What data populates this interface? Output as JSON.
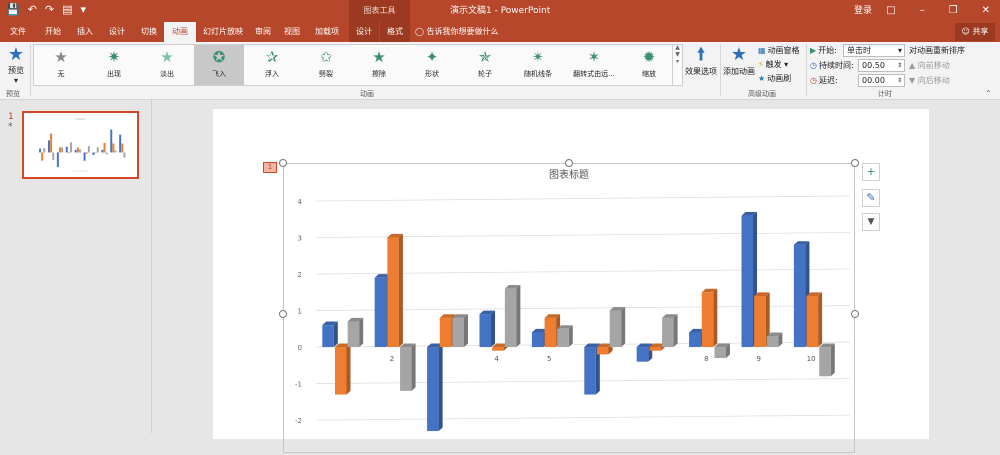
{
  "titlebar": {
    "context_tools": "图表工具",
    "title": "演示文稿1  -  PowerPoint",
    "login": "登录",
    "qat": [
      "save-icon",
      "undo-icon",
      "redo-icon",
      "present-icon",
      "customize-icon"
    ],
    "window_controls": [
      "ribbon-display-icon",
      "minimize-icon",
      "restore-icon",
      "close-icon"
    ]
  },
  "tabs": {
    "items": [
      {
        "label": "文件",
        "name": "tab-file"
      },
      {
        "label": "开始",
        "name": "tab-home"
      },
      {
        "label": "插入",
        "name": "tab-insert"
      },
      {
        "label": "设计",
        "name": "tab-design"
      },
      {
        "label": "切换",
        "name": "tab-transitions"
      },
      {
        "label": "动画",
        "name": "tab-animations"
      },
      {
        "label": "幻灯片放映",
        "name": "tab-slideshow"
      },
      {
        "label": "审阅",
        "name": "tab-review"
      },
      {
        "label": "视图",
        "name": "tab-view"
      },
      {
        "label": "加载项",
        "name": "tab-addins"
      },
      {
        "label": "设计",
        "name": "tab-chart-design"
      },
      {
        "label": "格式",
        "name": "tab-chart-format"
      }
    ],
    "tell_me": "告诉我你想要做什么",
    "share": "共享"
  },
  "ribbon": {
    "preview_label": "预览",
    "preview_group": "预览",
    "animation_group": "动画",
    "effects": [
      {
        "label": "无",
        "icon": "star-none-icon"
      },
      {
        "label": "出现",
        "icon": "star-appear-icon"
      },
      {
        "label": "淡出",
        "icon": "star-fade-icon"
      },
      {
        "label": "飞入",
        "icon": "star-fly-in-icon"
      },
      {
        "label": "浮入",
        "icon": "star-float-in-icon"
      },
      {
        "label": "劈裂",
        "icon": "star-split-icon"
      },
      {
        "label": "擦除",
        "icon": "star-wipe-icon"
      },
      {
        "label": "形状",
        "icon": "star-shape-icon"
      },
      {
        "label": "轮子",
        "icon": "star-wheel-icon"
      },
      {
        "label": "随机线条",
        "icon": "star-random-bars-icon"
      },
      {
        "label": "翻转式由远...",
        "icon": "star-grow-turn-icon"
      },
      {
        "label": "缩放",
        "icon": "star-zoom-icon"
      }
    ],
    "selected_effect": 3,
    "effect_options": "效果选项",
    "add_animation": "添加动画",
    "animation_pane": "动画窗格",
    "trigger": "触发",
    "animation_painter": "动画刷",
    "advanced_group": "高级动画",
    "start_label": "开始:",
    "start_value": "单击时",
    "duration_label": "持续时间:",
    "duration_value": "00.50",
    "delay_label": "延迟:",
    "delay_value": "00.00",
    "reorder_label": "对动画重新排序",
    "move_earlier": "向前移动",
    "move_later": "向后移动",
    "timing_group": "计时"
  },
  "thumbnails": {
    "number": "1",
    "star": "*"
  },
  "slide": {
    "anim_tag": "1",
    "chart_side_buttons": [
      "plus-icon",
      "brush-icon",
      "filter-icon"
    ]
  },
  "chart_data": {
    "type": "bar",
    "title": "图表标题",
    "categories": [
      "1",
      "2",
      "3",
      "4",
      "5",
      "6",
      "7",
      "8",
      "9",
      "10"
    ],
    "category_labels_shown": [
      "",
      "2",
      "",
      "4",
      "5",
      "",
      "",
      "8",
      "9",
      "10"
    ],
    "series": [
      {
        "color": "#4472c4",
        "values": [
          0.6,
          1.9,
          -2.3,
          0.9,
          0.4,
          -1.3,
          -0.4,
          0.4,
          3.6,
          2.8
        ]
      },
      {
        "color": "#ed7d31",
        "values": [
          -1.3,
          3.0,
          0.8,
          -0.1,
          0.8,
          -0.2,
          -0.1,
          1.5,
          1.4,
          1.4
        ]
      },
      {
        "color": "#a5a5a5",
        "values": [
          0.7,
          -1.2,
          0.8,
          1.6,
          0.5,
          1.0,
          0.8,
          -0.3,
          0.3,
          -0.8
        ]
      }
    ],
    "ylim": [
      -2.6,
      4
    ],
    "yticks": [
      "4",
      "3",
      "2",
      "1",
      "0",
      "-1",
      "-2"
    ],
    "grid": true
  }
}
